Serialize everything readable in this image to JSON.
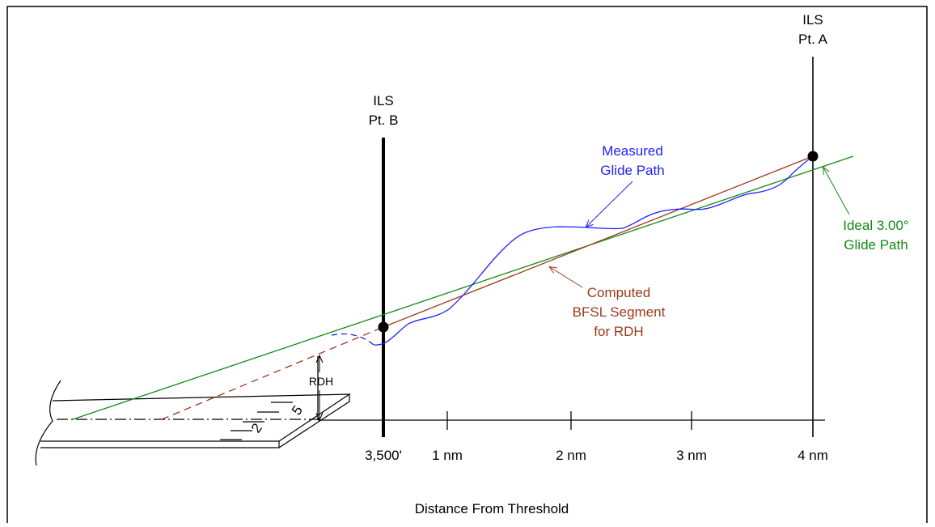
{
  "labels": {
    "pt_a": [
      "ILS",
      "Pt. A"
    ],
    "pt_b": [
      "ILS",
      "Pt. B"
    ],
    "measured": [
      "Measured",
      "Glide Path"
    ],
    "ideal": [
      "Ideal 3.00°",
      "Glide Path"
    ],
    "computed": [
      "Computed",
      "BFSL Segment",
      "for RDH"
    ],
    "rdh": "RDH",
    "runway": [
      "2",
      "5"
    ]
  },
  "axis": {
    "ticks": [
      "3,500'",
      "1 nm",
      "2 nm",
      "3 nm",
      "4 nm"
    ],
    "title": "Distance From Threshold"
  }
}
